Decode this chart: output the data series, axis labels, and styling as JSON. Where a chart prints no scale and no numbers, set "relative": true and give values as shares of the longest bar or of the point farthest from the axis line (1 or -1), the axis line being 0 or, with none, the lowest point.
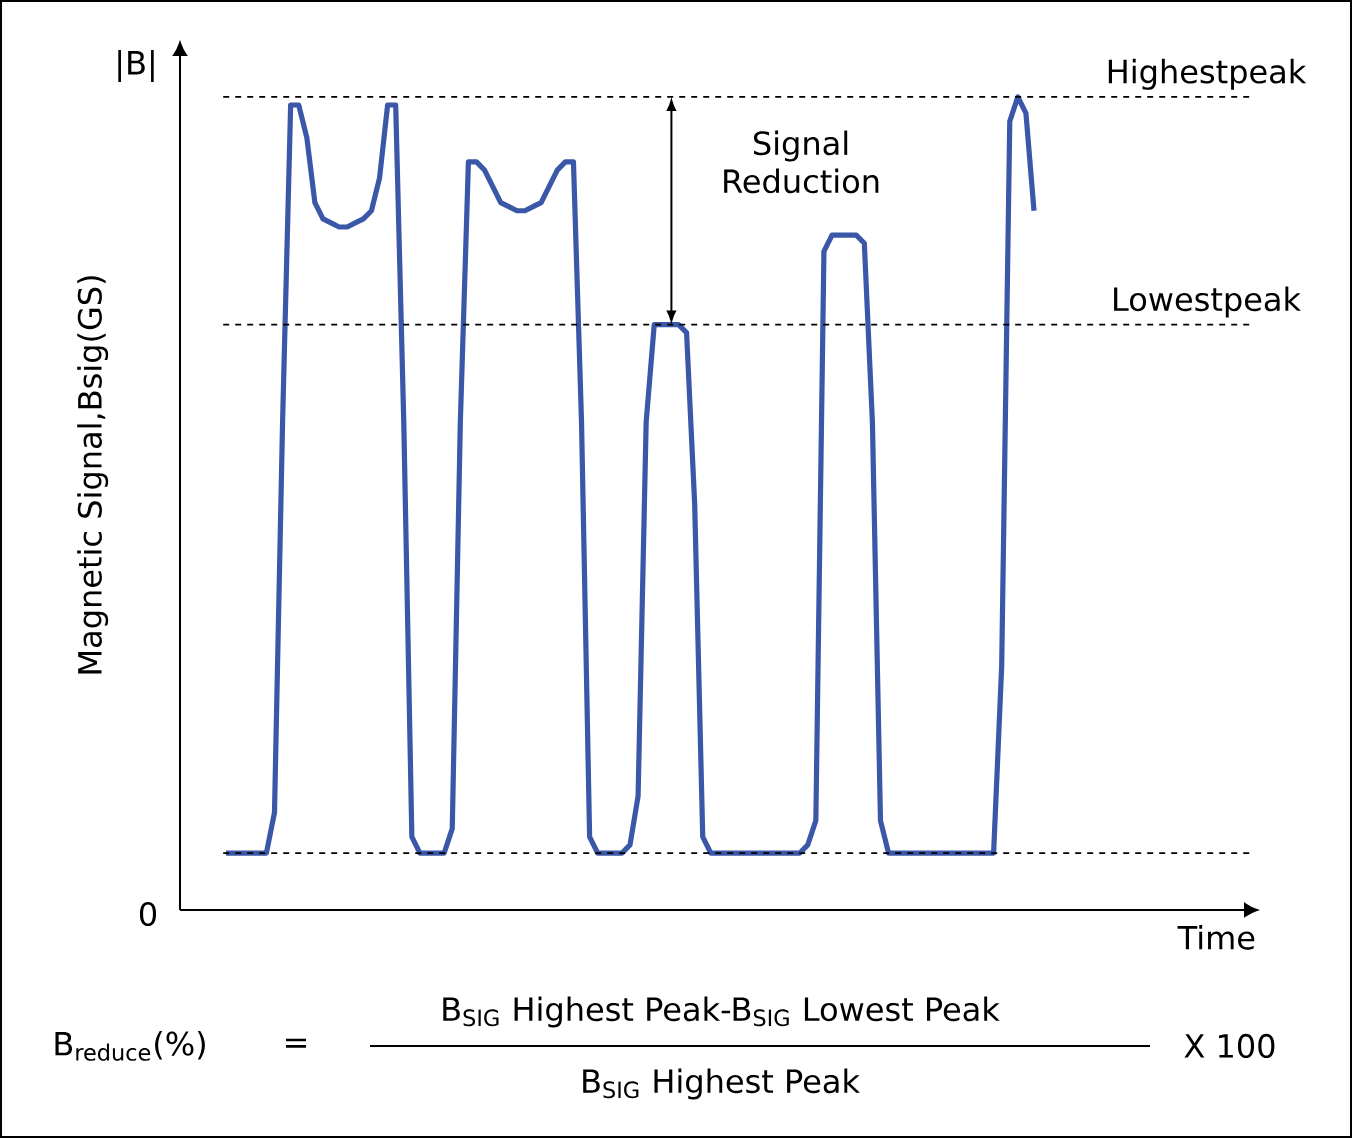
{
  "chart_data": {
    "type": "line",
    "relative": true,
    "xlabel": "Time",
    "ylabel": "Magnetic Signal,Bsig(GS)",
    "color": "#3a57a8",
    "marker": "none",
    "categories": [
      null,
      null,
      null,
      null,
      null,
      null,
      null,
      null,
      null,
      null,
      null,
      null,
      null,
      null,
      null,
      null,
      null,
      null,
      null,
      null,
      null,
      null,
      null,
      null,
      null,
      null,
      null,
      null,
      null,
      null,
      null,
      null,
      null,
      null,
      null,
      null,
      null,
      null,
      null,
      null,
      null,
      null,
      null,
      null,
      null,
      null,
      null,
      null,
      null,
      null,
      null,
      null,
      null,
      null,
      null,
      null,
      null,
      null,
      null,
      null,
      null,
      null,
      null,
      null,
      null,
      null,
      null,
      null,
      null,
      null,
      null,
      null,
      null,
      null,
      null,
      null,
      null,
      null,
      null,
      null,
      null,
      null,
      null,
      null,
      null,
      null,
      null,
      null,
      null,
      null,
      null,
      null,
      null,
      null,
      null,
      null,
      null,
      null,
      null,
      null,
      null
    ],
    "values": [
      0.07,
      0.07,
      0.07,
      0.07,
      0.07,
      0.07,
      0.12,
      0.6,
      0.99,
      0.99,
      0.95,
      0.87,
      0.85,
      0.845,
      0.84,
      0.84,
      0.845,
      0.85,
      0.86,
      0.9,
      0.99,
      0.99,
      0.6,
      0.09,
      0.07,
      0.07,
      0.07,
      0.07,
      0.1,
      0.6,
      0.92,
      0.92,
      0.91,
      0.89,
      0.87,
      0.865,
      0.86,
      0.86,
      0.865,
      0.87,
      0.89,
      0.91,
      0.92,
      0.92,
      0.6,
      0.09,
      0.07,
      0.07,
      0.07,
      0.07,
      0.08,
      0.14,
      0.6,
      0.72,
      0.72,
      0.72,
      0.72,
      0.71,
      0.5,
      0.09,
      0.07,
      0.07,
      0.07,
      0.07,
      0.07,
      0.07,
      0.07,
      0.07,
      0.07,
      0.07,
      0.07,
      0.07,
      0.08,
      0.11,
      0.81,
      0.83,
      0.83,
      0.83,
      0.83,
      0.82,
      0.6,
      0.11,
      0.07,
      0.07,
      0.07,
      0.07,
      0.07,
      0.07,
      0.07,
      0.07,
      0.07,
      0.07,
      0.07,
      0.07,
      0.07,
      0.07,
      0.3,
      0.97,
      1,
      0.98,
      0.86
    ],
    "ref_lines": [
      {
        "axis": "y",
        "value": 1,
        "label": "Highestpeak",
        "line_style": "dashed"
      },
      {
        "axis": "y",
        "value": 0.72,
        "label": "Lowestpeak",
        "line_style": "dashed"
      },
      {
        "axis": "y",
        "value": 0.07,
        "line_style": "dashed"
      }
    ],
    "annotations": [
      "|B|",
      "0",
      "Signal Reduction",
      "B$_{reduce}$(%)",
      "=",
      "B$_{SIG}$ Highest Peak-B$_{SIG}$ Lowest Peak",
      "B$_{SIG}$ Highest Peak",
      "X 100"
    ]
  }
}
